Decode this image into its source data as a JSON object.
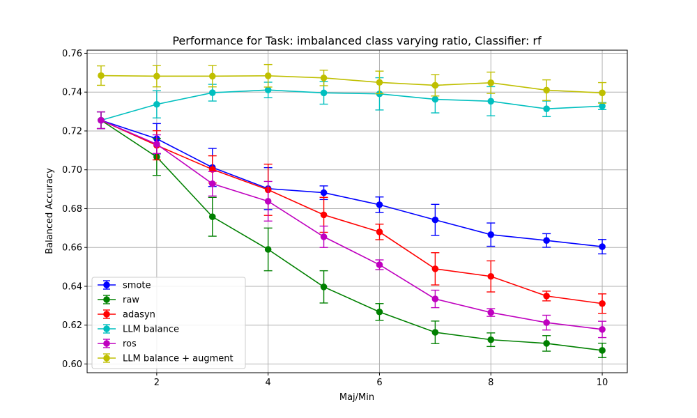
{
  "chart_data": {
    "type": "line",
    "title": "Performance for Task: imbalanced class varying ratio, Classifier: rf",
    "xlabel": "Maj/Min",
    "ylabel": "Balanced Accuracy",
    "xlim": [
      0.75,
      10.45
    ],
    "ylim": [
      0.5955,
      0.7616
    ],
    "xticks": [
      2,
      4,
      6,
      8,
      10
    ],
    "yticks": [
      0.6,
      0.62,
      0.64,
      0.66,
      0.68,
      0.7,
      0.72,
      0.74,
      0.76
    ],
    "ytick_labels": [
      "0.60",
      "0.62",
      "0.64",
      "0.66",
      "0.68",
      "0.70",
      "0.72",
      "0.74",
      "0.76"
    ],
    "grid": true,
    "legend_position": "lower-left",
    "x": [
      1,
      2,
      3,
      4,
      5,
      6,
      7,
      8,
      9,
      10
    ],
    "series": [
      {
        "name": "smote",
        "color": "#0000ff",
        "values": [
          0.7255,
          0.716,
          0.7012,
          0.6903,
          0.6882,
          0.682,
          0.6742,
          0.6666,
          0.6636,
          0.6604
        ],
        "errors": [
          0.0043,
          0.0078,
          0.0098,
          0.0108,
          0.0035,
          0.004,
          0.008,
          0.006,
          0.0035,
          0.0037
        ]
      },
      {
        "name": "raw",
        "color": "#008000",
        "values": [
          0.7255,
          0.7066,
          0.6758,
          0.659,
          0.6397,
          0.6268,
          0.6163,
          0.6125,
          0.6106,
          0.607
        ],
        "errors": [
          0.0043,
          0.0095,
          0.01,
          0.011,
          0.0083,
          0.0043,
          0.0058,
          0.0035,
          0.004,
          0.0037
        ]
      },
      {
        "name": "adasyn",
        "color": "#ff0000",
        "values": [
          0.7255,
          0.7126,
          0.7002,
          0.6897,
          0.6768,
          0.668,
          0.649,
          0.6451,
          0.635,
          0.6311
        ],
        "errors": [
          0.0043,
          0.0075,
          0.007,
          0.0132,
          0.009,
          0.004,
          0.0083,
          0.008,
          0.0025,
          0.005
        ]
      },
      {
        "name": "LLM balance",
        "color": "#00bfbf",
        "values": [
          0.7255,
          0.7337,
          0.7397,
          0.7411,
          0.7396,
          0.7391,
          0.7363,
          0.7353,
          0.7314,
          0.7328
        ],
        "errors": [
          0.0043,
          0.007,
          0.0043,
          0.004,
          0.0058,
          0.0083,
          0.007,
          0.0075,
          0.004,
          0.0018
        ]
      },
      {
        "name": "ros",
        "color": "#bf00bf",
        "values": [
          0.7255,
          0.7132,
          0.6928,
          0.6838,
          0.6655,
          0.6511,
          0.6335,
          0.6265,
          0.6213,
          0.6178
        ],
        "errors": [
          0.0043,
          0.0048,
          0.0063,
          0.0102,
          0.0055,
          0.0025,
          0.0045,
          0.002,
          0.0038,
          0.0042
        ]
      },
      {
        "name": "LLM balance + augment",
        "color": "#bfbf00",
        "values": [
          0.7485,
          0.7482,
          0.7482,
          0.7484,
          0.7473,
          0.745,
          0.7435,
          0.7448,
          0.741,
          0.7396
        ],
        "errors": [
          0.005,
          0.0055,
          0.0055,
          0.0058,
          0.004,
          0.0058,
          0.0055,
          0.0055,
          0.0053,
          0.0053
        ]
      }
    ]
  }
}
